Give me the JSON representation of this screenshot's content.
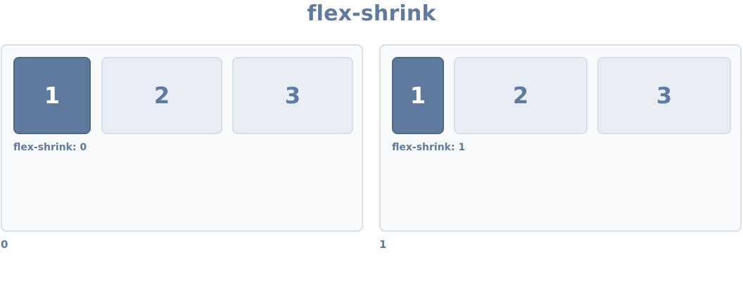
{
  "title": "flex-shrink",
  "demos": [
    {
      "label": "flex-shrink: 0",
      "caption": "0",
      "items": [
        "1",
        "2",
        "3"
      ]
    },
    {
      "label": "flex-shrink: 1",
      "caption": "1",
      "items": [
        "1",
        "2",
        "3"
      ]
    }
  ],
  "colors": {
    "accent": "#5f7a9c",
    "panel_bg": "#f8fafc",
    "panel_border": "#d9e0ea",
    "item_bg": "#e8edf6",
    "item_border": "#d7dfea"
  }
}
